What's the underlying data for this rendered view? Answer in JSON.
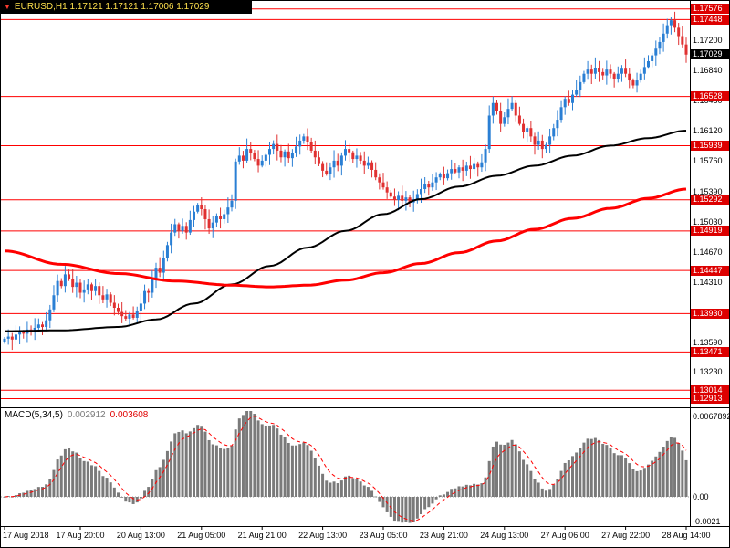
{
  "window": {
    "symbol_line": "EURUSD,H1 1.17121 1.17121 1.17006 1.17029",
    "marker_icon": "▼"
  },
  "chart_data": {
    "type": "candlestick",
    "symbol": "EURUSD",
    "timeframe": "H1",
    "ohlc_current": {
      "open": 1.17121,
      "high": 1.17121,
      "low": 1.17006,
      "close": 1.17029
    },
    "colors": {
      "up": "#2a7fd4",
      "down": "#e03131",
      "level": "#ff0000",
      "ma_black": "#000000",
      "ma_red": "#ff0000",
      "hist": "#7a7a7a",
      "signal": "#ff0000",
      "badge_red": "#dd0000",
      "badge_black": "#000000",
      "symbol_text": "#ffe14d"
    },
    "price_axis": {
      "top_price": 1.1766,
      "bottom_price": 1.1282,
      "labels": [
        "1.17200",
        "1.16840",
        "1.16480",
        "1.16120",
        "1.15760",
        "1.15390",
        "1.15030",
        "1.14670",
        "1.14310",
        "1.13950",
        "1.13590",
        "1.13230"
      ],
      "current": "1.17029"
    },
    "levels": [
      "1.17576",
      "1.17448",
      "1.16528",
      "1.15939",
      "1.15292",
      "1.14919",
      "1.14447",
      "1.13930",
      "1.13471",
      "1.13014",
      "1.12913"
    ],
    "time_axis": [
      {
        "t": "17 Aug 2018",
        "i": 0
      },
      {
        "t": "17 Aug 20:00",
        "i": 20
      },
      {
        "t": "20 Aug 13:00",
        "i": 36
      },
      {
        "t": "21 Aug 05:00",
        "i": 52
      },
      {
        "t": "21 Aug 21:00",
        "i": 68
      },
      {
        "t": "22 Aug 13:00",
        "i": 84
      },
      {
        "t": "23 Aug 05:00",
        "i": 100
      },
      {
        "t": "23 Aug 21:00",
        "i": 116
      },
      {
        "t": "24 Aug 13:00",
        "i": 132
      },
      {
        "t": "27 Aug 06:00",
        "i": 148
      },
      {
        "t": "27 Aug 22:00",
        "i": 164
      },
      {
        "t": "28 Aug 14:00",
        "i": 180
      }
    ],
    "closes": [
      1.1363,
      1.13655,
      1.1362,
      1.1368,
      1.1371,
      1.1369,
      1.1374,
      1.1372,
      1.1376,
      1.138,
      1.1377,
      1.1385,
      1.1398,
      1.1415,
      1.1432,
      1.1426,
      1.144,
      1.1434,
      1.1425,
      1.143,
      1.1418,
      1.1422,
      1.1428,
      1.142,
      1.1426,
      1.1415,
      1.141,
      1.1416,
      1.1406,
      1.14,
      1.1395,
      1.139,
      1.1387,
      1.1392,
      1.1388,
      1.1396,
      1.1405,
      1.142,
      1.1418,
      1.1435,
      1.1448,
      1.1442,
      1.146,
      1.1475,
      1.149,
      1.15,
      1.1492,
      1.1498,
      1.149,
      1.1505,
      1.1515,
      1.1523,
      1.1518,
      1.1506,
      1.1495,
      1.1502,
      1.151,
      1.1506,
      1.1512,
      1.152,
      1.1528,
      1.1575,
      1.1582,
      1.1576,
      1.159,
      1.1585,
      1.1578,
      1.157,
      1.1576,
      1.1583,
      1.159,
      1.1596,
      1.1588,
      1.158,
      1.1587,
      1.1579,
      1.1585,
      1.1593,
      1.16,
      1.1605,
      1.1598,
      1.1588,
      1.158,
      1.1572,
      1.1564,
      1.156,
      1.1568,
      1.1576,
      1.157,
      1.1582,
      1.159,
      1.1586,
      1.1578,
      1.1582,
      1.1576,
      1.157,
      1.1574,
      1.1565,
      1.1556,
      1.155,
      1.1544,
      1.1538,
      1.1533,
      1.1529,
      1.1534,
      1.1528,
      1.1532,
      1.1526,
      1.153,
      1.1536,
      1.1542,
      1.1548,
      1.1544,
      1.155,
      1.1556,
      1.156,
      1.1555,
      1.1561,
      1.1566,
      1.1562,
      1.1568,
      1.1564,
      1.157,
      1.1566,
      1.1572,
      1.1568,
      1.1574,
      1.159,
      1.163,
      1.1645,
      1.1635,
      1.162,
      1.1628,
      1.1638,
      1.1645,
      1.163,
      1.162,
      1.161,
      1.1615,
      1.1605,
      1.1595,
      1.16,
      1.159,
      1.1595,
      1.1605,
      1.1615,
      1.1625,
      1.164,
      1.165,
      1.1645,
      1.1655,
      1.166,
      1.167,
      1.168,
      1.1685,
      1.168,
      1.1687,
      1.1682,
      1.1678,
      1.1685,
      1.168,
      1.1674,
      1.168,
      1.1686,
      1.168,
      1.1672,
      1.1666,
      1.1672,
      1.168,
      1.1688,
      1.1695,
      1.1702,
      1.171,
      1.1718,
      1.1728,
      1.1738,
      1.1744,
      1.1735,
      1.1725,
      1.1715,
      1.17029
    ],
    "ma_black": [
      [
        0,
        1.1372
      ],
      [
        15,
        1.1373
      ],
      [
        30,
        1.1377
      ],
      [
        40,
        1.1386
      ],
      [
        50,
        1.1405
      ],
      [
        60,
        1.1428
      ],
      [
        70,
        1.145
      ],
      [
        80,
        1.1472
      ],
      [
        90,
        1.1492
      ],
      [
        100,
        1.1512
      ],
      [
        110,
        1.153
      ],
      [
        120,
        1.1545
      ],
      [
        130,
        1.1558
      ],
      [
        140,
        1.157
      ],
      [
        150,
        1.1582
      ],
      [
        160,
        1.1594
      ],
      [
        170,
        1.1603
      ],
      [
        180,
        1.1612
      ]
    ],
    "ma_red": [
      [
        0,
        1.1468
      ],
      [
        15,
        1.1452
      ],
      [
        30,
        1.1441
      ],
      [
        45,
        1.1432
      ],
      [
        60,
        1.1427
      ],
      [
        70,
        1.1425
      ],
      [
        80,
        1.1427
      ],
      [
        90,
        1.1433
      ],
      [
        100,
        1.1442
      ],
      [
        110,
        1.1453
      ],
      [
        120,
        1.1466
      ],
      [
        130,
        1.148
      ],
      [
        140,
        1.1494
      ],
      [
        150,
        1.1507
      ],
      [
        160,
        1.1519
      ],
      [
        170,
        1.1531
      ],
      [
        180,
        1.1542
      ]
    ],
    "macd": {
      "label": "MACD(5,34,5)",
      "value_main": "0.002912",
      "value_signal": "0.003608",
      "fast": 5,
      "slow": 34,
      "signal_period": 5,
      "scale_max": 0.0067892,
      "scale": [
        {
          "label": "0.0067892",
          "value": 0.0067892
        },
        {
          "label": "0.00",
          "value": 0
        },
        {
          "label": "-0.0021",
          "value": -0.0021
        }
      ]
    }
  }
}
